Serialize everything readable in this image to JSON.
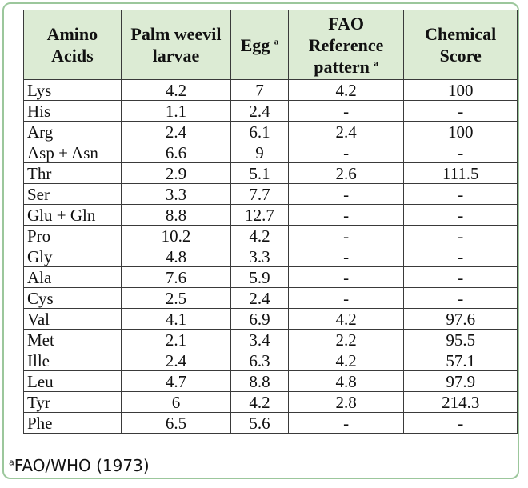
{
  "table": {
    "headers": [
      {
        "line1": "Amino",
        "line2": "Acids",
        "line3": "",
        "sup": ""
      },
      {
        "line1": "Palm weevil",
        "line2": "larvae",
        "line3": "",
        "sup": ""
      },
      {
        "line1": "Egg",
        "line2": "",
        "line3": "",
        "sup": "a"
      },
      {
        "line1": "FAO",
        "line2": "Reference",
        "line3": "pattern",
        "sup": "a"
      },
      {
        "line1": "Chemical",
        "line2": "Score",
        "line3": "",
        "sup": ""
      }
    ],
    "rows": [
      [
        "Lys",
        "4.2",
        "7",
        "4.2",
        "100"
      ],
      [
        "His",
        "1.1",
        "2.4",
        "-",
        "-"
      ],
      [
        "Arg",
        "2.4",
        "6.1",
        "2.4",
        "100"
      ],
      [
        "Asp + Asn",
        "6.6",
        "9",
        "-",
        "-"
      ],
      [
        "Thr",
        "2.9",
        "5.1",
        "2.6",
        "111.5"
      ],
      [
        "Ser",
        "3.3",
        "7.7",
        "-",
        "-"
      ],
      [
        "Glu + Gln",
        "8.8",
        "12.7",
        "-",
        "-"
      ],
      [
        "Pro",
        "10.2",
        "4.2",
        "-",
        "-"
      ],
      [
        "Gly",
        "4.8",
        "3.3",
        "-",
        "-"
      ],
      [
        "Ala",
        "7.6",
        "5.9",
        "-",
        "-"
      ],
      [
        "Cys",
        "2.5",
        "2.4",
        "-",
        "-"
      ],
      [
        "Val",
        "4.1",
        "6.9",
        "4.2",
        "97.6"
      ],
      [
        "Met",
        "2.1",
        "3.4",
        "2.2",
        "95.5"
      ],
      [
        "Ille",
        "2.4",
        "6.3",
        "4.2",
        "57.1"
      ],
      [
        "Leu",
        "4.7",
        "8.8",
        "4.8",
        "97.9"
      ],
      [
        "Tyr",
        "6",
        "4.2",
        "2.8",
        "214.3"
      ],
      [
        "Phe",
        "6.5",
        "5.6",
        "-",
        "-"
      ]
    ]
  },
  "footnote": {
    "marker": "a",
    "text": "FAO/WHO (1973)"
  },
  "colors": {
    "header_bg": "#dcebd4",
    "frame_border": "#9cc79c"
  }
}
